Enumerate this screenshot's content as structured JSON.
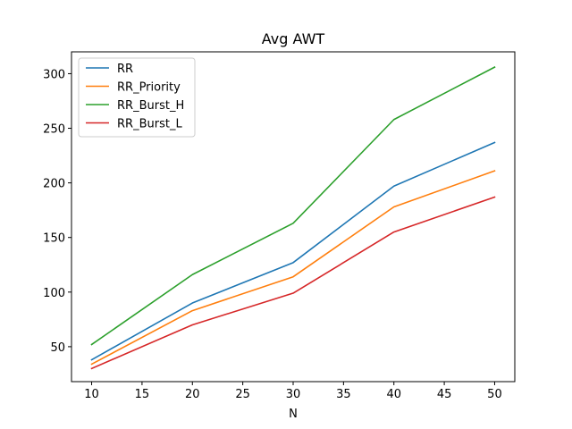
{
  "chart_data": {
    "type": "line",
    "title": "Avg AWT",
    "xlabel": "N",
    "ylabel": "",
    "x": [
      10,
      20,
      30,
      40,
      50
    ],
    "xlim": [
      8,
      52
    ],
    "ylim": [
      18,
      320
    ],
    "xticks": [
      10,
      15,
      20,
      25,
      30,
      35,
      40,
      45,
      50
    ],
    "yticks": [
      50,
      100,
      150,
      200,
      250,
      300
    ],
    "grid": false,
    "legend": "top-left",
    "series": [
      {
        "name": "RR",
        "color": "#1f77b4",
        "values": [
          38,
          90,
          127,
          197,
          237
        ]
      },
      {
        "name": "RR_Priority",
        "color": "#ff7f0e",
        "values": [
          34,
          83,
          114,
          178,
          211
        ]
      },
      {
        "name": "RR_Burst_H",
        "color": "#2ca02c",
        "values": [
          52,
          116,
          163,
          258,
          306
        ]
      },
      {
        "name": "RR_Burst_L",
        "color": "#d62728",
        "values": [
          30,
          70,
          99,
          155,
          187
        ]
      }
    ]
  }
}
